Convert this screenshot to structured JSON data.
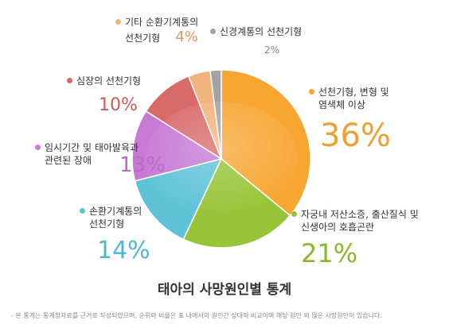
{
  "chart_data": {
    "type": "pie",
    "title": "태아의 사망원인별 통계",
    "categories": [
      "선천기형, 변형 및 염색체 이상",
      "자궁내 저산소증, 출산질식 및 신생아의 호흡곤란",
      "손환기계통의 선천기형",
      "임시기간 및 태아발육과 관련된 장애",
      "심장의 선천기형",
      "기타 순환기계통의 선천기형",
      "신경계통의 선천기형"
    ],
    "values": [
      36,
      21,
      14,
      13,
      10,
      4,
      2
    ],
    "labels": [
      "36%",
      "21%",
      "14%",
      "13%",
      "10%",
      "4%",
      "2%"
    ],
    "colors": [
      "#f7a632",
      "#98c438",
      "#5fc3d8",
      "#c77ad4",
      "#d96a6a",
      "#f2b47e",
      "#a3a3a3"
    ]
  },
  "legend": [
    {
      "line1": "선천기형, 변형 및",
      "line2": "염색체 이상",
      "pct": "36%"
    },
    {
      "line1": "자궁내 저산소증, 출산질식 및",
      "line2": "신생아의 호흡곤란",
      "pct": "21%"
    },
    {
      "line1": "손환기계통의",
      "line2": "선천기형",
      "pct": "14%"
    },
    {
      "line1": "임시기간 및 태아발육과",
      "line2": "관련된 장애",
      "pct": "13%"
    },
    {
      "line1": "심장의 선천기형",
      "line2": "",
      "pct": "10%"
    },
    {
      "line1": "기타 순환기계통의",
      "line2": "선천기형",
      "pct": "4%"
    },
    {
      "line1": "신경계통의 선천기형",
      "line2": "",
      "pct": "2%"
    }
  ],
  "footnote": "- 본 통계는 통계청자료를 근거로 작성되었으며, 순위와 비율은 표 내에서의 원인간 상대적 비교이며 해당 원인 외 많은 사망원인이 있습니다."
}
